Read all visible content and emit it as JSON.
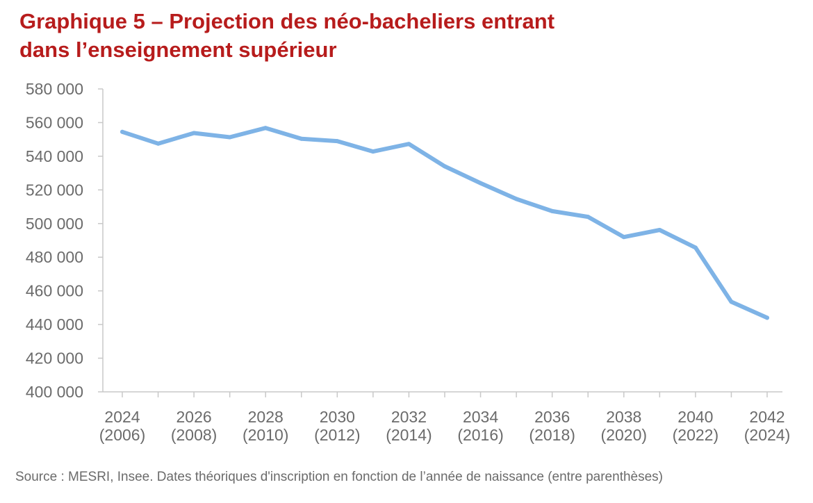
{
  "title_line1": "Graphique 5 – Projection des néo-bacheliers entrant",
  "title_line2": "dans l’enseignement supérieur",
  "source": "Source : MESRI, Insee. Dates théoriques d'inscription en fonction de l’année de naissance (entre parenthèses)",
  "colors": {
    "title": "#b71c1c",
    "line": "#7eb3e6",
    "axis": "#c8c8c8",
    "text": "#6b6b6b"
  },
  "chart_data": {
    "type": "line",
    "title": "Graphique 5 – Projection des néo-bacheliers entrant dans l’enseignement supérieur",
    "xlabel": "",
    "ylabel": "",
    "ylim": [
      400000,
      580000
    ],
    "y_ticks": [
      400000,
      420000,
      440000,
      460000,
      480000,
      500000,
      520000,
      540000,
      560000,
      580000
    ],
    "y_tick_labels": [
      "400 000",
      "420 000",
      "440 000",
      "460 000",
      "480 000",
      "500 000",
      "520 000",
      "540 000",
      "560 000",
      "580 000"
    ],
    "x": [
      2024,
      2025,
      2026,
      2027,
      2028,
      2029,
      2030,
      2031,
      2032,
      2033,
      2034,
      2035,
      2036,
      2037,
      2038,
      2039,
      2040,
      2041,
      2042
    ],
    "x_tick_labels": [
      {
        "year": "2024",
        "birth": "(2006)"
      },
      {
        "year": "2026",
        "birth": "(2008)"
      },
      {
        "year": "2028",
        "birth": "(2010)"
      },
      {
        "year": "2030",
        "birth": "(2012)"
      },
      {
        "year": "2032",
        "birth": "(2014)"
      },
      {
        "year": "2034",
        "birth": "(2016)"
      },
      {
        "year": "2036",
        "birth": "(2018)"
      },
      {
        "year": "2038",
        "birth": "(2020)"
      },
      {
        "year": "2040",
        "birth": "(2022)"
      },
      {
        "year": "2042",
        "birth": "(2024)"
      }
    ],
    "series": [
      {
        "values": [
          554500,
          547500,
          553800,
          551300,
          556800,
          550400,
          549000,
          542800,
          547300,
          534000,
          524000,
          514600,
          507400,
          504000,
          492000,
          496200,
          485700,
          453500,
          444000
        ]
      }
    ],
    "grid": false,
    "legend": "none"
  }
}
